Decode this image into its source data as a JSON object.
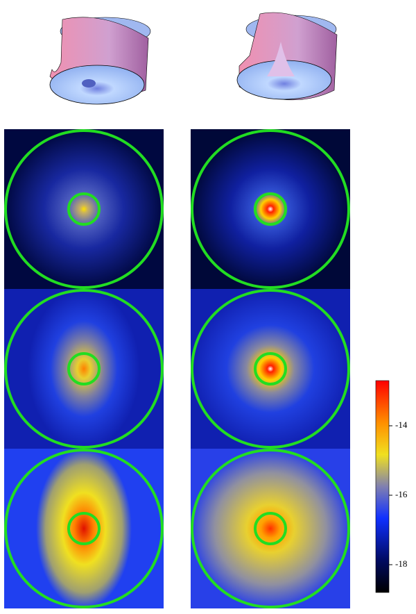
{
  "colorbar": {
    "lim": [
      -18.8,
      -12.7
    ],
    "ticks": [
      -14,
      -16,
      -18
    ]
  }
}
